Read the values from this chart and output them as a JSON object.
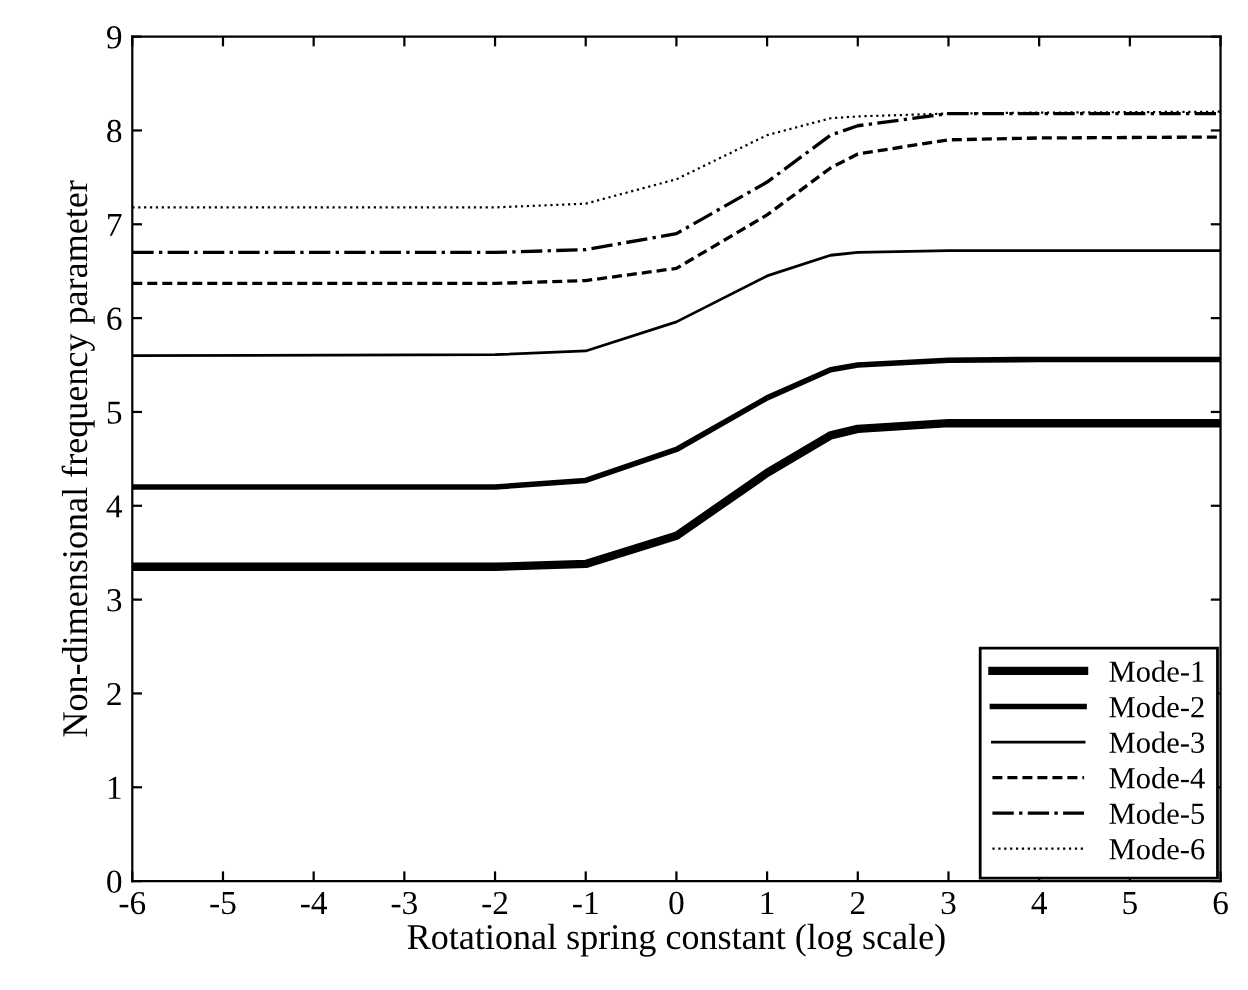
{
  "chart_data": {
    "type": "line",
    "xlabel": "Rotational spring constant (log scale)",
    "ylabel": "Non-dimensional frequency parameter",
    "xlim": [
      -6,
      6
    ],
    "xticks": [
      -6,
      -5,
      -4,
      -3,
      -2,
      -1,
      0,
      1,
      2,
      3,
      4,
      5,
      6
    ],
    "ylim": [
      0,
      9
    ],
    "yticks": [
      0,
      1,
      2,
      3,
      4,
      5,
      6,
      7,
      8,
      9
    ],
    "x": [
      -6,
      -2,
      -1,
      0,
      1,
      1.7,
      2,
      3,
      4,
      6
    ],
    "legend": "bottom right",
    "grid": false,
    "series": [
      {
        "name": "Mode-1",
        "color": "#000000",
        "line_style": "solid",
        "values": [
          3.35,
          3.35,
          3.38,
          3.68,
          4.35,
          4.75,
          4.82,
          4.88,
          4.88,
          4.88
        ]
      },
      {
        "name": "Mode-2",
        "color": "#000000",
        "line_style": "solid",
        "values": [
          4.2,
          4.2,
          4.27,
          4.6,
          5.15,
          5.45,
          5.5,
          5.55,
          5.56,
          5.56
        ]
      },
      {
        "name": "Mode-3",
        "color": "#000000",
        "line_style": "solid",
        "values": [
          5.6,
          5.61,
          5.65,
          5.96,
          6.45,
          6.67,
          6.7,
          6.72,
          6.72,
          6.72
        ]
      },
      {
        "name": "Mode-4",
        "color": "#000000",
        "line_style": "dashed",
        "values": [
          6.37,
          6.37,
          6.4,
          6.53,
          7.1,
          7.6,
          7.75,
          7.9,
          7.92,
          7.93
        ]
      },
      {
        "name": "Mode-5",
        "color": "#000000",
        "line_style": "dashdot",
        "values": [
          6.7,
          6.7,
          6.73,
          6.9,
          7.45,
          7.95,
          8.05,
          8.18,
          8.18,
          8.18
        ]
      },
      {
        "name": "Mode-6",
        "color": "#000000",
        "line_style": "dotted",
        "values": [
          7.18,
          7.18,
          7.22,
          7.48,
          7.95,
          8.13,
          8.15,
          8.18,
          8.19,
          8.2
        ]
      }
    ]
  }
}
